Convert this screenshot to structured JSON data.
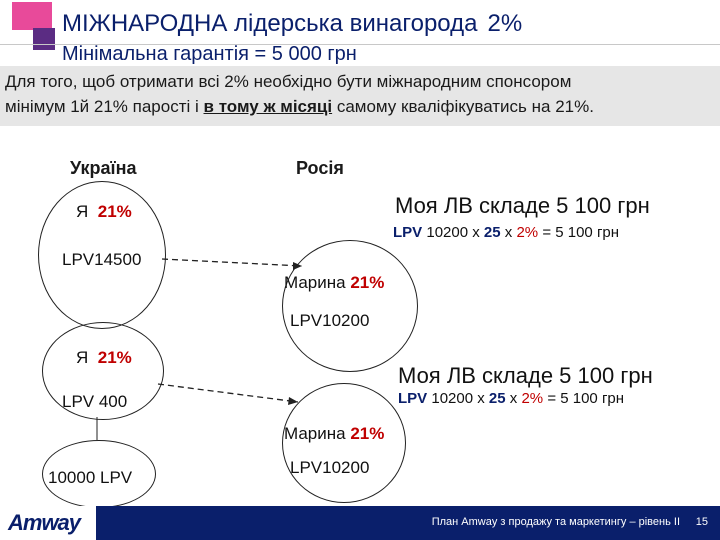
{
  "header": {
    "title": "МІЖНАРОДНА лідерська винагорода",
    "title_pct": "2%",
    "subtitle": "Мінімальна гарантія = 5 000 грн"
  },
  "banner": {
    "line1": "Для того, щоб отримати всі 2% необхідно бути міжнародним спонсором",
    "line2_pre": "мінімум 1й 21% парості і ",
    "line2_under": "в тому ж місяці",
    "line2_post": " самому кваліфікуватись на 21%."
  },
  "countries": {
    "left": "Україна",
    "right": "Росія"
  },
  "top": {
    "me": "Я",
    "me_pct": "21%",
    "lpv": "LPV14500",
    "partner_name": "Марина",
    "partner_pct": "21%",
    "partner_lpv": "LPV10200",
    "result": "Моя ЛВ складе  5 100  грн",
    "calc_lpv": "LPV",
    "calc_a": "10200",
    "calc_x1": "x",
    "calc_b": "25",
    "calc_x2": "x",
    "calc_c": "2%",
    "calc_eq": "= 5 100 грн"
  },
  "bottom": {
    "me": "Я",
    "me_pct": "21%",
    "lpv": "LPV 400",
    "child_lpv": "10000 LPV",
    "partner_name": "Марина",
    "partner_pct": "21%",
    "partner_lpv": "LPV10200",
    "result": "Моя ЛВ складе 5 100 грн",
    "calc_lpv": "LPV",
    "calc_a": "10200",
    "calc_x1": "x",
    "calc_b": "25",
    "calc_x2": "x",
    "calc_c": "2%",
    "calc_eq": "= 5 100 грн"
  },
  "footer": {
    "logo": "Amway",
    "text": "План Amway з продажу та маркетингу – рівень ІІ",
    "page": "15"
  },
  "colors": {
    "navy": "#0a1f6b",
    "accent_pink": "#e84a9a",
    "accent_purple": "#5b2c83",
    "red": "#c00000"
  }
}
